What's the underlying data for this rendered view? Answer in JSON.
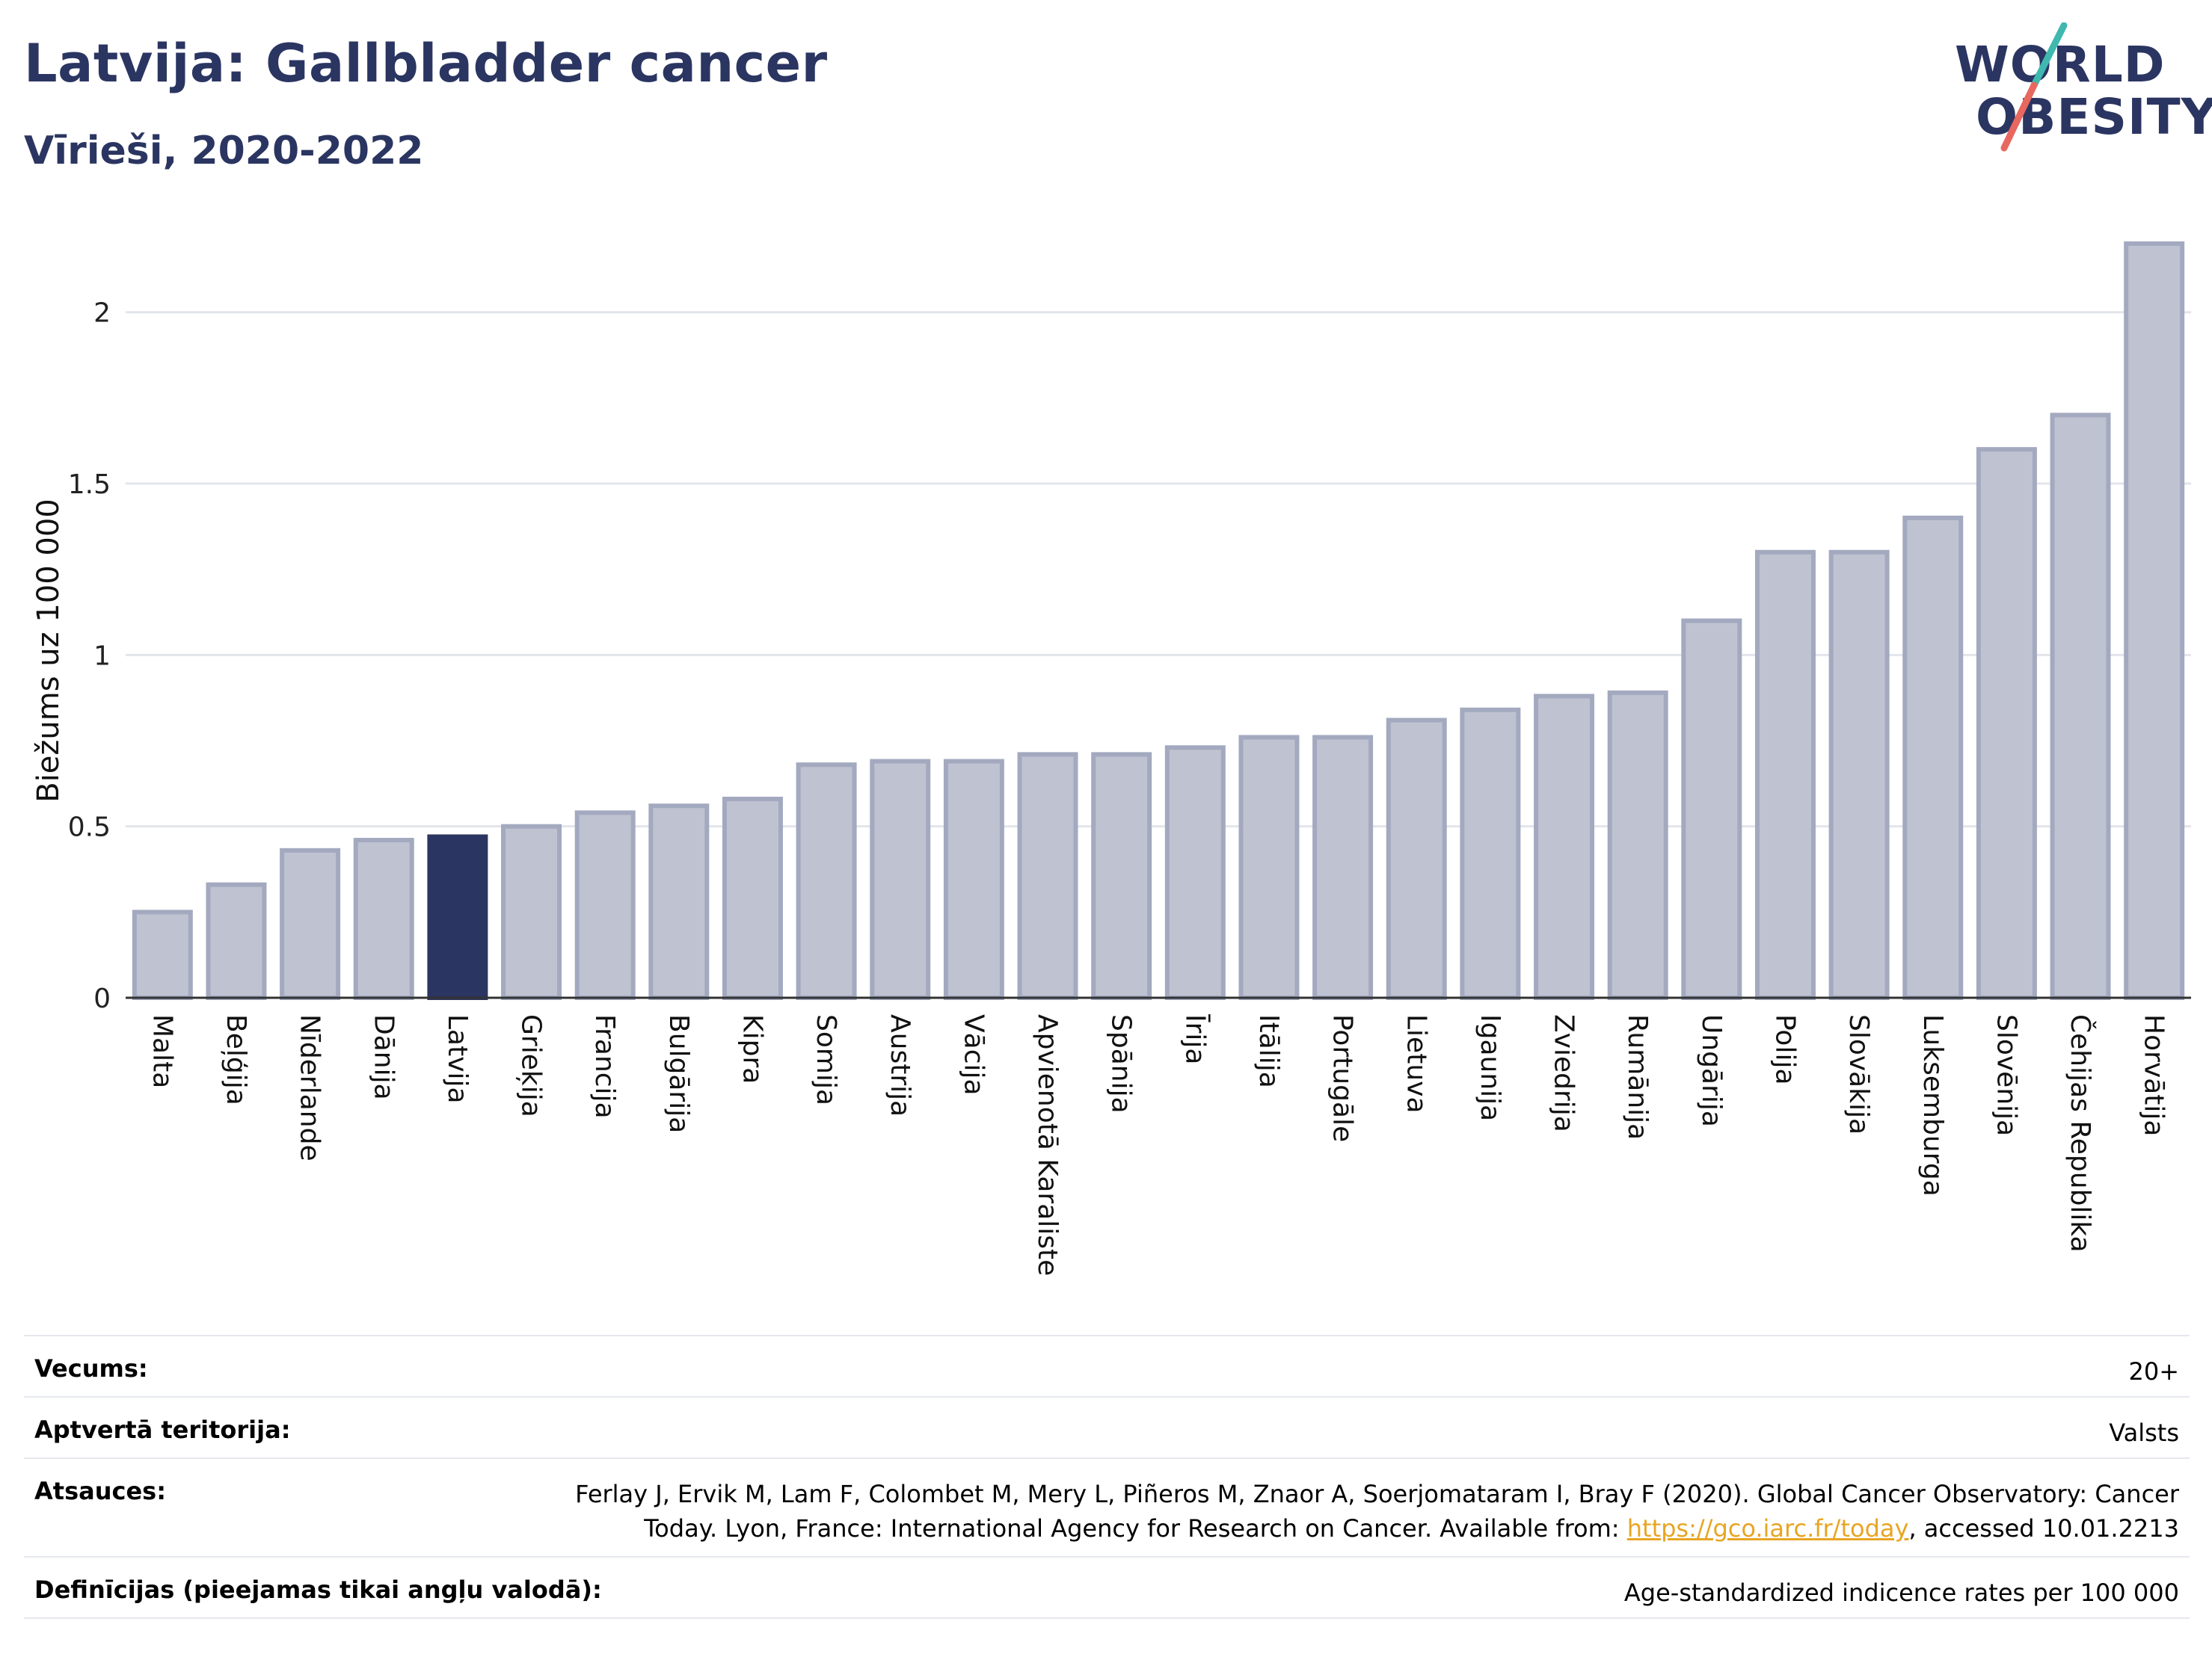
{
  "header": {
    "title": "Latvija: Gallbladder cancer",
    "subtitle": "Vīrieši, 2020-2022"
  },
  "logo": {
    "line1": "WORLD",
    "line2": "OBESITY",
    "accent_teal": "#3fb8b0",
    "accent_red": "#e8675f"
  },
  "colors": {
    "bar": "#bfc2d0",
    "bar_stroke": "#a3a9bf",
    "highlight": "#2b3561",
    "axis": "#333333",
    "grid": "#e3e5ec"
  },
  "chart_data": {
    "type": "bar",
    "ylabel": "Biežums uz 100 000",
    "ylim": [
      0,
      2.2
    ],
    "yticks": [
      0,
      0.5,
      1,
      1.5,
      2
    ],
    "ytick_labels": [
      "0",
      "0.5",
      "1",
      "1.5",
      "2"
    ],
    "grid": true,
    "highlight": "Latvija",
    "categories": [
      "Malta",
      "Beļģija",
      "Nīderlande",
      "Dānija",
      "Latvija",
      "Grieķija",
      "Francija",
      "Bulgārija",
      "Kipra",
      "Somija",
      "Austrija",
      "Vācija",
      "Apvienotā Karaliste",
      "Spānija",
      "Īrija",
      "Itālija",
      "Portugāle",
      "Lietuva",
      "Igaunija",
      "Zviedrija",
      "Rumānija",
      "Ungārija",
      "Polija",
      "Slovākija",
      "Luksemburga",
      "Slovēnija",
      "Čehijas Republika",
      "Horvātija"
    ],
    "values": [
      0.25,
      0.33,
      0.43,
      0.46,
      0.47,
      0.5,
      0.54,
      0.56,
      0.58,
      0.68,
      0.69,
      0.69,
      0.71,
      0.71,
      0.73,
      0.76,
      0.76,
      0.81,
      0.84,
      0.88,
      0.89,
      1.1,
      1.3,
      1.3,
      1.4,
      1.6,
      1.7,
      2.2
    ]
  },
  "meta": {
    "age_label": "Vecums:",
    "age_value": "20+",
    "coverage_label": "Aptvertā teritorija:",
    "coverage_value": "Valsts",
    "refs_label": "Atsauces:",
    "refs_text_1": "Ferlay J, Ervik M, Lam F, Colombet M, Mery L, Piñeros M, Znaor A, Soerjomataram I, Bray F (2020). Global Cancer Observatory: Cancer Today. Lyon, France: International Agency for Research on Cancer. Available from: ",
    "refs_link": "https://gco.iarc.fr/today",
    "refs_text_2": ", accessed 10.01.2213",
    "defs_label": "Definīcijas (pieejamas tikai angļu valodā):",
    "defs_value": "Age-standardized indicence rates per 100 000"
  }
}
